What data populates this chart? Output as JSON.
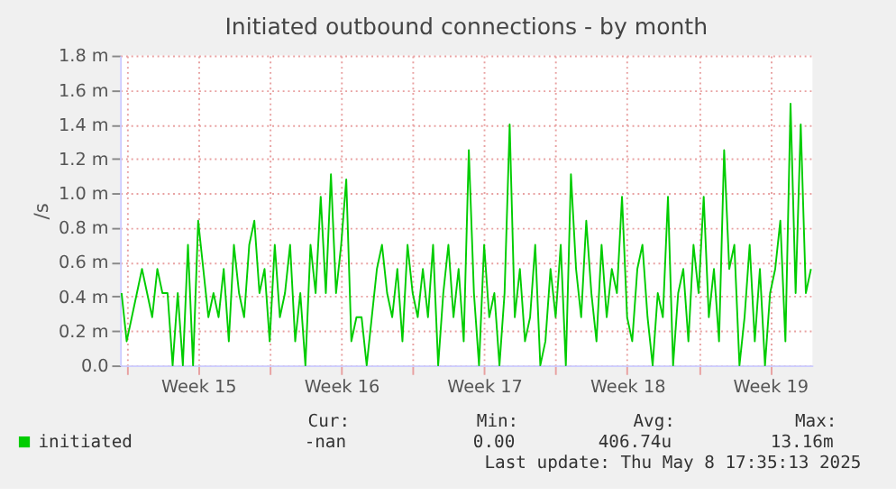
{
  "chart_data": {
    "type": "line",
    "title": "Initiated outbound connections - by month",
    "ylabel": "/s",
    "categories": [
      null,
      null,
      null,
      null,
      null,
      null,
      null,
      null,
      null,
      null,
      null,
      null,
      null,
      null,
      null,
      "Week 15",
      null,
      null,
      null,
      null,
      null,
      null,
      null,
      null,
      null,
      null,
      null,
      null,
      null,
      null,
      null,
      null,
      null,
      null,
      null,
      null,
      null,
      null,
      null,
      null,
      null,
      null,
      null,
      "Week 16",
      null,
      null,
      null,
      null,
      null,
      null,
      null,
      null,
      null,
      null,
      null,
      null,
      null,
      null,
      null,
      null,
      null,
      null,
      null,
      null,
      null,
      null,
      null,
      null,
      null,
      null,
      null,
      "Week 17",
      null,
      null,
      null,
      null,
      null,
      null,
      null,
      null,
      null,
      null,
      null,
      null,
      null,
      null,
      null,
      null,
      null,
      null,
      null,
      null,
      null,
      null,
      null,
      null,
      null,
      null,
      null,
      "Week 18",
      null,
      null,
      null,
      null,
      null,
      null,
      null,
      null,
      null,
      null,
      null,
      null,
      null,
      null,
      null,
      null,
      null,
      null,
      null,
      null,
      null,
      null,
      null,
      null,
      null,
      null,
      null,
      "Week 19",
      null,
      null,
      null,
      null,
      null,
      null,
      null,
      null
    ],
    "series": [
      {
        "name": "initiated",
        "color": "#00cc00",
        "values": [
          0.42,
          0.14,
          0.28,
          0.42,
          0.56,
          0.42,
          0.28,
          0.56,
          0.42,
          0.42,
          0,
          0.42,
          0,
          0.7,
          0,
          0.84,
          0.56,
          0.28,
          0.42,
          0.28,
          0.56,
          0.14,
          0.7,
          0.42,
          0.28,
          0.7,
          0.84,
          0.42,
          0.56,
          0.14,
          0.7,
          0.28,
          0.42,
          0.7,
          0.14,
          0.42,
          0,
          0.7,
          0.42,
          0.98,
          0.42,
          1.11,
          0.42,
          0.7,
          1.08,
          0.14,
          0.28,
          0.28,
          0,
          0.28,
          0.56,
          0.7,
          0.42,
          0.28,
          0.56,
          0.14,
          0.7,
          0.42,
          0.28,
          0.56,
          0.28,
          0.7,
          0,
          0.42,
          0.7,
          0.28,
          0.56,
          0.14,
          1.25,
          0.42,
          0,
          0.7,
          0.28,
          0.42,
          0,
          0.42,
          1.4,
          0.28,
          0.56,
          0.14,
          0.28,
          0.7,
          0,
          0.14,
          0.56,
          0.28,
          0.7,
          0,
          1.11,
          0.56,
          0.28,
          0.84,
          0.42,
          0.14,
          0.7,
          0.28,
          0.56,
          0.42,
          0.98,
          0.28,
          0.14,
          0.56,
          0.7,
          0.28,
          0,
          0.42,
          0.28,
          0.98,
          0,
          0.42,
          0.56,
          0.14,
          0.7,
          0.42,
          0.98,
          0.28,
          0.56,
          0.14,
          1.25,
          0.56,
          0.7,
          0,
          0.28,
          0.7,
          0.14,
          0.56,
          0,
          0.42,
          0.56,
          0.84,
          0.14,
          1.52,
          0.42,
          1.4,
          0.42,
          0.56
        ]
      }
    ],
    "ylim": [
      0,
      1.8
    ],
    "yticks": [
      {
        "value": 0,
        "label": "0.0"
      },
      {
        "value": 0.2,
        "label": "0.2 m"
      },
      {
        "value": 0.4,
        "label": "0.4 m"
      },
      {
        "value": 0.6,
        "label": "0.6 m"
      },
      {
        "value": 0.8,
        "label": "0.8 m"
      },
      {
        "value": 1.0,
        "label": "1.0 m"
      },
      {
        "value": 1.2,
        "label": "1.2 m"
      },
      {
        "value": 1.4,
        "label": "1.4 m"
      },
      {
        "value": 1.6,
        "label": "1.6 m"
      },
      {
        "value": 1.8,
        "label": "1.8 m"
      }
    ],
    "grid": true,
    "legend": "bottom left",
    "marker": "none",
    "line_style": "solid",
    "annotations": [
      "Cur:",
      "Min:",
      "Avg:",
      "Max:",
      "-nan",
      "0.00",
      "406.74u",
      "13.16m",
      "Last update: Thu May  8 17:35:13 2025"
    ]
  }
}
